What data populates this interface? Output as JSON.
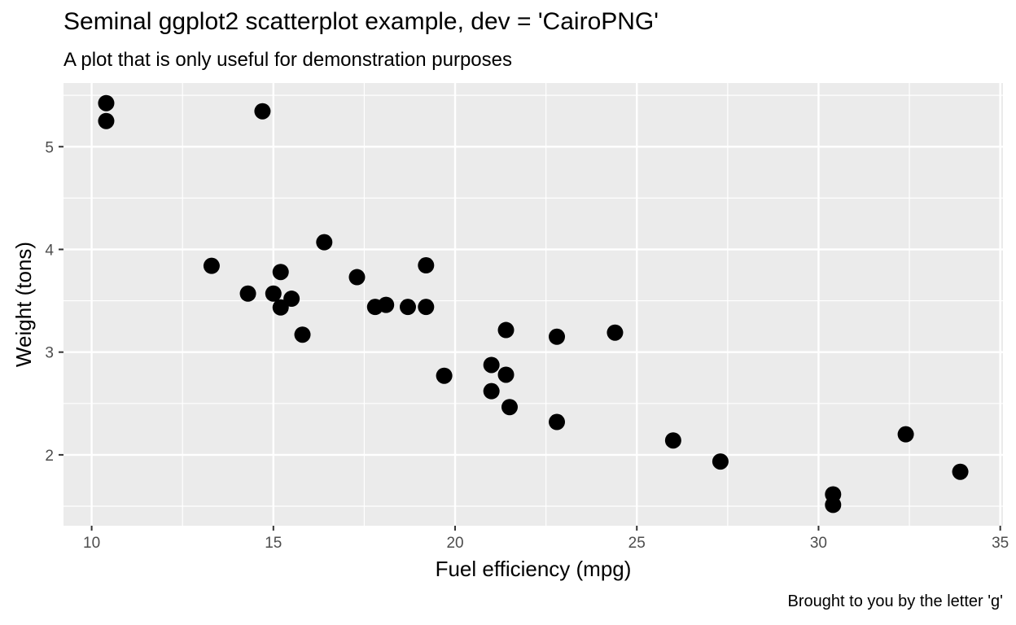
{
  "title": "Seminal ggplot2 scatterplot example, dev = 'CairoPNG'",
  "subtitle": "A plot that is only useful for demonstration purposes",
  "caption": "Brought to you by the letter 'g'",
  "chart_data": {
    "type": "scatter",
    "title": "Seminal ggplot2 scatterplot example, dev = 'CairoPNG'",
    "subtitle": "A plot that is only useful for demonstration purposes",
    "xlabel": "Fuel efficiency (mpg)",
    "ylabel": "Weight (tons)",
    "xlim": [
      9.225,
      35.075
    ],
    "ylim": [
      1.31,
      5.62
    ],
    "xticks": [
      10,
      15,
      20,
      25,
      30,
      35
    ],
    "yticks": [
      2,
      3,
      4,
      5
    ],
    "grid": true,
    "panel_background": "#ebebeb",
    "point_color": "#000000",
    "x": [
      21,
      21,
      22.8,
      21.4,
      18.7,
      18.1,
      14.3,
      24.4,
      22.8,
      19.2,
      17.8,
      16.4,
      17.3,
      15.2,
      10.4,
      10.4,
      14.7,
      32.4,
      30.4,
      33.9,
      21.5,
      15.5,
      15.2,
      13.3,
      19.2,
      27.3,
      26,
      30.4,
      15.8,
      19.7,
      15,
      21.4
    ],
    "y": [
      2.62,
      2.875,
      2.32,
      3.215,
      3.44,
      3.46,
      3.57,
      3.19,
      3.15,
      3.44,
      3.44,
      4.07,
      3.73,
      3.78,
      5.25,
      5.424,
      5.345,
      2.2,
      1.615,
      1.835,
      2.465,
      3.52,
      3.435,
      3.84,
      3.845,
      1.935,
      2.14,
      1.513,
      3.17,
      2.77,
      3.57,
      2.78
    ]
  }
}
